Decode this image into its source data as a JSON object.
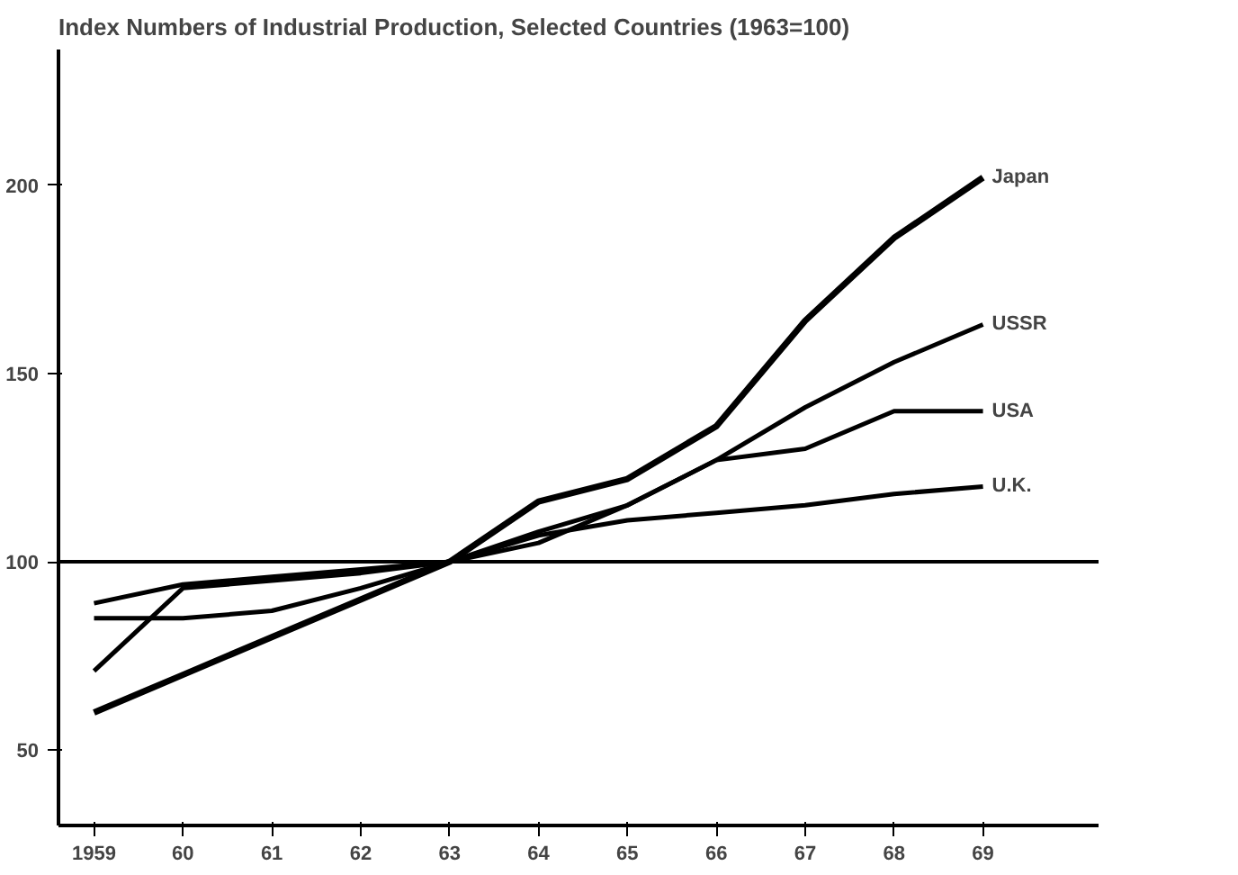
{
  "chart_data": {
    "type": "line",
    "title": "Index Numbers of Industrial Production, Selected Countries (1963=100)",
    "x": [
      1959,
      1960,
      1961,
      1962,
      1963,
      1964,
      1965,
      1966,
      1967,
      1968,
      1969
    ],
    "series": [
      {
        "name": "Japan",
        "color": "#000000",
        "values": [
          60,
          70,
          80,
          90,
          100,
          116,
          122,
          136,
          164,
          186,
          202
        ]
      },
      {
        "name": "USSR",
        "color": "#000000",
        "values": [
          71,
          93,
          95,
          97,
          100,
          105,
          115,
          127,
          141,
          153,
          163
        ]
      },
      {
        "name": "USA",
        "color": "#000000",
        "values": [
          89,
          94,
          96,
          98,
          100,
          108,
          115,
          127,
          130,
          140,
          140
        ]
      },
      {
        "name": "U.K.",
        "color": "#000000",
        "values": [
          85,
          85,
          87,
          93,
          100,
          107,
          111,
          113,
          115,
          118,
          120
        ]
      }
    ],
    "ref_lines": [
      {
        "axis": "y",
        "value": 100,
        "color": "#000000"
      }
    ],
    "xlim": [
      1958.6,
      1970.3
    ],
    "ylim": [
      30,
      236
    ],
    "xticks": [
      {
        "value": 1959,
        "label": "1959"
      },
      {
        "value": 1960,
        "label": "60"
      },
      {
        "value": 1961,
        "label": "61"
      },
      {
        "value": 1962,
        "label": "62"
      },
      {
        "value": 1963,
        "label": "63"
      },
      {
        "value": 1964,
        "label": "64"
      },
      {
        "value": 1965,
        "label": "65"
      },
      {
        "value": 1966,
        "label": "66"
      },
      {
        "value": 1967,
        "label": "67"
      },
      {
        "value": 1968,
        "label": "68"
      },
      {
        "value": 1969,
        "label": "69"
      }
    ],
    "yticks": [
      50,
      100,
      150,
      200
    ],
    "grid": false,
    "legend": false,
    "marker": "none",
    "line_style": "solid"
  }
}
